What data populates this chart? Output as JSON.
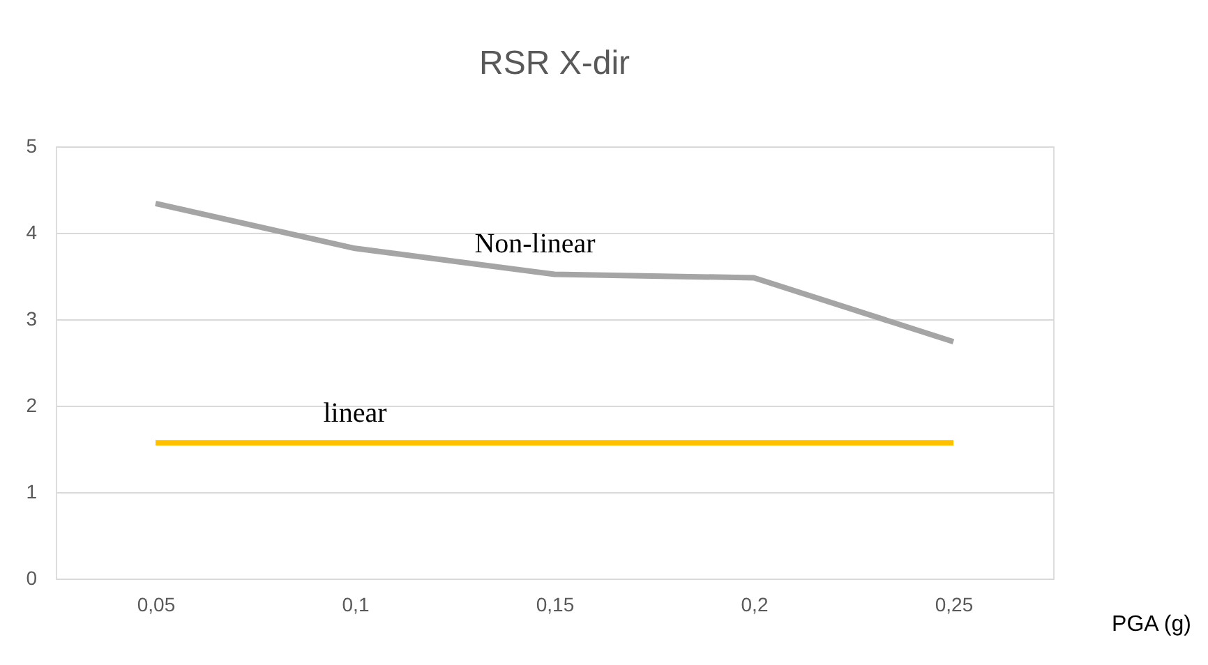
{
  "chart_data": {
    "type": "line",
    "title": "RSR X-dir",
    "xlabel": "PGA (g)",
    "categories": [
      "0,05",
      "0,1",
      "0,15",
      "0,2",
      "0,25"
    ],
    "series": [
      {
        "name": "Non-linear",
        "color": "#a5a5a5",
        "values": [
          4.34,
          3.82,
          3.52,
          3.48,
          2.74
        ]
      },
      {
        "name": "linear",
        "color": "#ffc000",
        "values": [
          1.57,
          1.57,
          1.57,
          1.57,
          1.57
        ]
      }
    ],
    "ylim": [
      0,
      5
    ],
    "yticks": [
      0,
      1,
      2,
      3,
      4,
      5
    ],
    "grid": "y",
    "marker": "none",
    "line_style": "solid"
  }
}
